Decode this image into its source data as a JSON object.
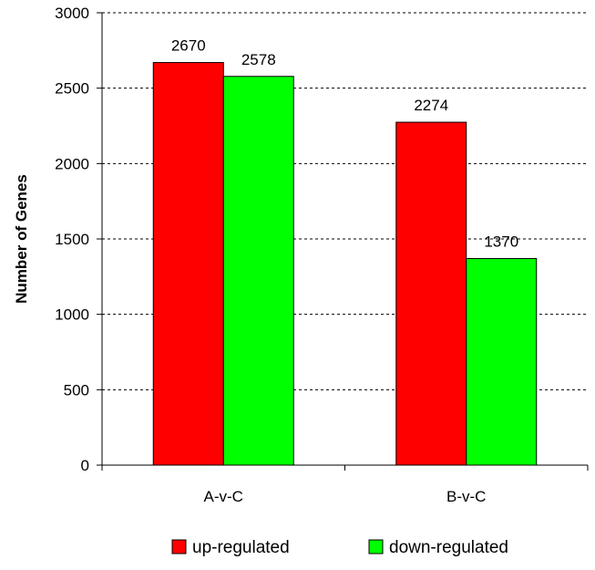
{
  "chart_data": {
    "type": "bar",
    "ylabel": "Number of Genes",
    "xlabel": "",
    "ylim": [
      0,
      3000
    ],
    "yticks": [
      0,
      500,
      1000,
      1500,
      2000,
      2500,
      3000
    ],
    "grid": true,
    "legend_position": "bottom",
    "categories": [
      "A-v-C",
      "B-v-C"
    ],
    "series": [
      {
        "name": "up-regulated",
        "color": "#ff0000",
        "values": [
          2670,
          2274
        ]
      },
      {
        "name": "down-regulated",
        "color": "#00ff00",
        "values": [
          2578,
          1370
        ]
      }
    ]
  }
}
